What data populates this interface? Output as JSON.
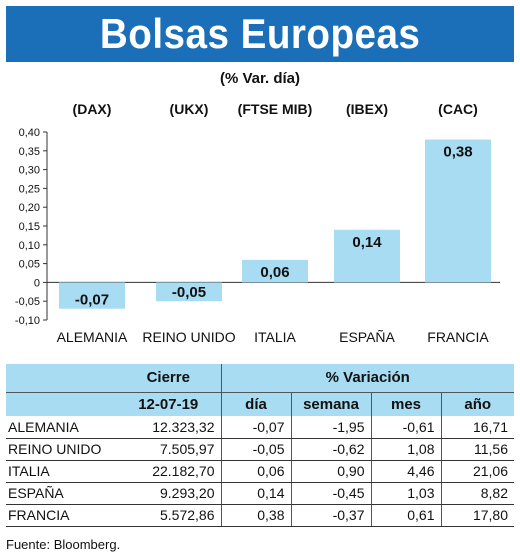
{
  "header": {
    "title": "Bolsas Europeas",
    "subtitle": "(% Var. día)"
  },
  "chart_data": {
    "type": "bar",
    "categories": [
      "ALEMANIA",
      "REINO UNIDO",
      "ITALIA",
      "ESPAÑA",
      "FRANCIA"
    ],
    "index_labels": [
      "(DAX)",
      "(UKX)",
      "(FTSE MIB)",
      "(IBEX)",
      "(CAC)"
    ],
    "values": [
      -0.07,
      -0.05,
      0.06,
      0.14,
      0.38
    ],
    "value_labels": [
      "-0,07",
      "-0,05",
      "0,06",
      "0,14",
      "0,38"
    ],
    "ylim": [
      -0.1,
      0.4
    ],
    "yticks": [
      -0.1,
      -0.05,
      0,
      0.05,
      0.1,
      0.15,
      0.2,
      0.25,
      0.3,
      0.35,
      0.4
    ],
    "ytick_labels": [
      "-0,10",
      "-0,05",
      "0",
      "0,05",
      "0,10",
      "0,15",
      "0,20",
      "0,25",
      "0,30",
      "0,35",
      "0,40"
    ],
    "bar_color": "#a8dcf2",
    "grid": false
  },
  "table": {
    "header_cierre": "Cierre",
    "header_date": "12-07-19",
    "header_variacion": "% Variación",
    "columns": [
      "día",
      "semana",
      "mes",
      "año"
    ],
    "rows": [
      {
        "name": "ALEMANIA",
        "cierre": "12.323,32",
        "dia": "-0,07",
        "semana": "-1,95",
        "mes": "-0,61",
        "anio": "16,71"
      },
      {
        "name": "REINO UNIDO",
        "cierre": "7.505,97",
        "dia": "-0,05",
        "semana": "-0,62",
        "mes": "1,08",
        "anio": "11,56"
      },
      {
        "name": "ITALIA",
        "cierre": "22.182,70",
        "dia": "0,06",
        "semana": "0,90",
        "mes": "4,46",
        "anio": "21,06"
      },
      {
        "name": "ESPAÑA",
        "cierre": "9.293,20",
        "dia": "0,14",
        "semana": "-0,45",
        "mes": "1,03",
        "anio": "8,82"
      },
      {
        "name": "FRANCIA",
        "cierre": "5.572,86",
        "dia": "0,38",
        "semana": "-0,37",
        "mes": "0,61",
        "anio": "17,80"
      }
    ]
  },
  "source": "Fuente: Bloomberg.",
  "colors": {
    "title_band": "#1b6fb8",
    "table_header": "#a8dcf2"
  }
}
